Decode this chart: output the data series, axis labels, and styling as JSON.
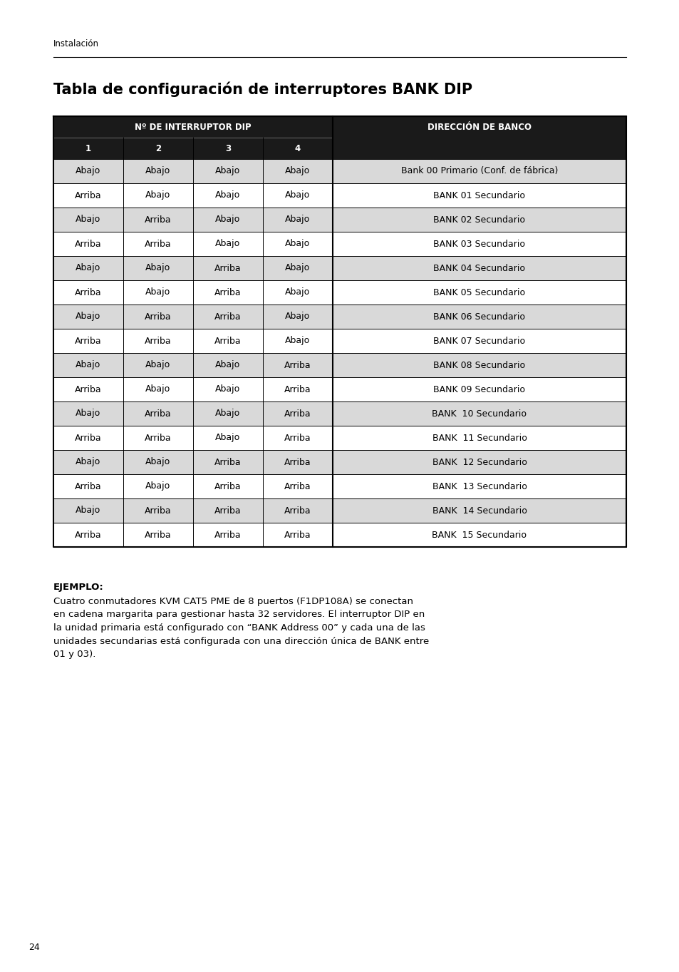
{
  "page_label": "Instalación",
  "page_number": "24",
  "title": "Tabla de configuración de interruptores BANK DIP",
  "header_row1_col1": "Nº DE INTERRUPTOR DIP",
  "header_row1_col2": "DIRECCIÓN DE BANCO",
  "header_row2": [
    "1",
    "2",
    "3",
    "4",
    ""
  ],
  "table_data": [
    [
      "Abajo",
      "Abajo",
      "Abajo",
      "Abajo",
      "Bank 00 Primario (Conf. de fábrica)"
    ],
    [
      "Arriba",
      "Abajo",
      "Abajo",
      "Abajo",
      "BANK 01 Secundario"
    ],
    [
      "Abajo",
      "Arriba",
      "Abajo",
      "Abajo",
      "BANK 02 Secundario"
    ],
    [
      "Arriba",
      "Arriba",
      "Abajo",
      "Abajo",
      "BANK 03 Secundario"
    ],
    [
      "Abajo",
      "Abajo",
      "Arriba",
      "Abajo",
      "BANK 04 Secundario"
    ],
    [
      "Arriba",
      "Abajo",
      "Arriba",
      "Abajo",
      "BANK 05 Secundario"
    ],
    [
      "Abajo",
      "Arriba",
      "Arriba",
      "Abajo",
      "BANK 06 Secundario"
    ],
    [
      "Arriba",
      "Arriba",
      "Arriba",
      "Abajo",
      "BANK 07 Secundario"
    ],
    [
      "Abajo",
      "Abajo",
      "Abajo",
      "Arriba",
      "BANK 08 Secundario"
    ],
    [
      "Arriba",
      "Abajo",
      "Abajo",
      "Arriba",
      "BANK 09 Secundario"
    ],
    [
      "Abajo",
      "Arriba",
      "Abajo",
      "Arriba",
      "BANK  10 Secundario"
    ],
    [
      "Arriba",
      "Arriba",
      "Abajo",
      "Arriba",
      "BANK  11 Secundario"
    ],
    [
      "Abajo",
      "Abajo",
      "Arriba",
      "Arriba",
      "BANK  12 Secundario"
    ],
    [
      "Arriba",
      "Abajo",
      "Arriba",
      "Arriba",
      "BANK  13 Secundario"
    ],
    [
      "Abajo",
      "Arriba",
      "Arriba",
      "Arriba",
      "BANK  14 Secundario"
    ],
    [
      "Arriba",
      "Arriba",
      "Arriba",
      "Arriba",
      "BANK  15 Secundario"
    ]
  ],
  "example_title": "EJEMPLO:",
  "example_text": "Cuatro conmutadores KVM CAT5 PME de 8 puertos (F1DP108A) se conectan\nen cadena margarita para gestionar hasta 32 servidores. El interruptor DIP en\nla unidad primaria está configurado con “BANK Address 00” y cada una de las\nunidades secundarias está configurada con una dirección única de BANK entre\n01 y 03).",
  "header_bg": "#1a1a1a",
  "header_text_color": "#ffffff",
  "row_even_bg": "#d9d9d9",
  "row_odd_bg": "#ffffff",
  "border_color": "#000000",
  "title_fontsize": 15,
  "header_fontsize": 8.5,
  "cell_fontsize": 9,
  "example_title_fontsize": 9.5,
  "example_text_fontsize": 9.5
}
